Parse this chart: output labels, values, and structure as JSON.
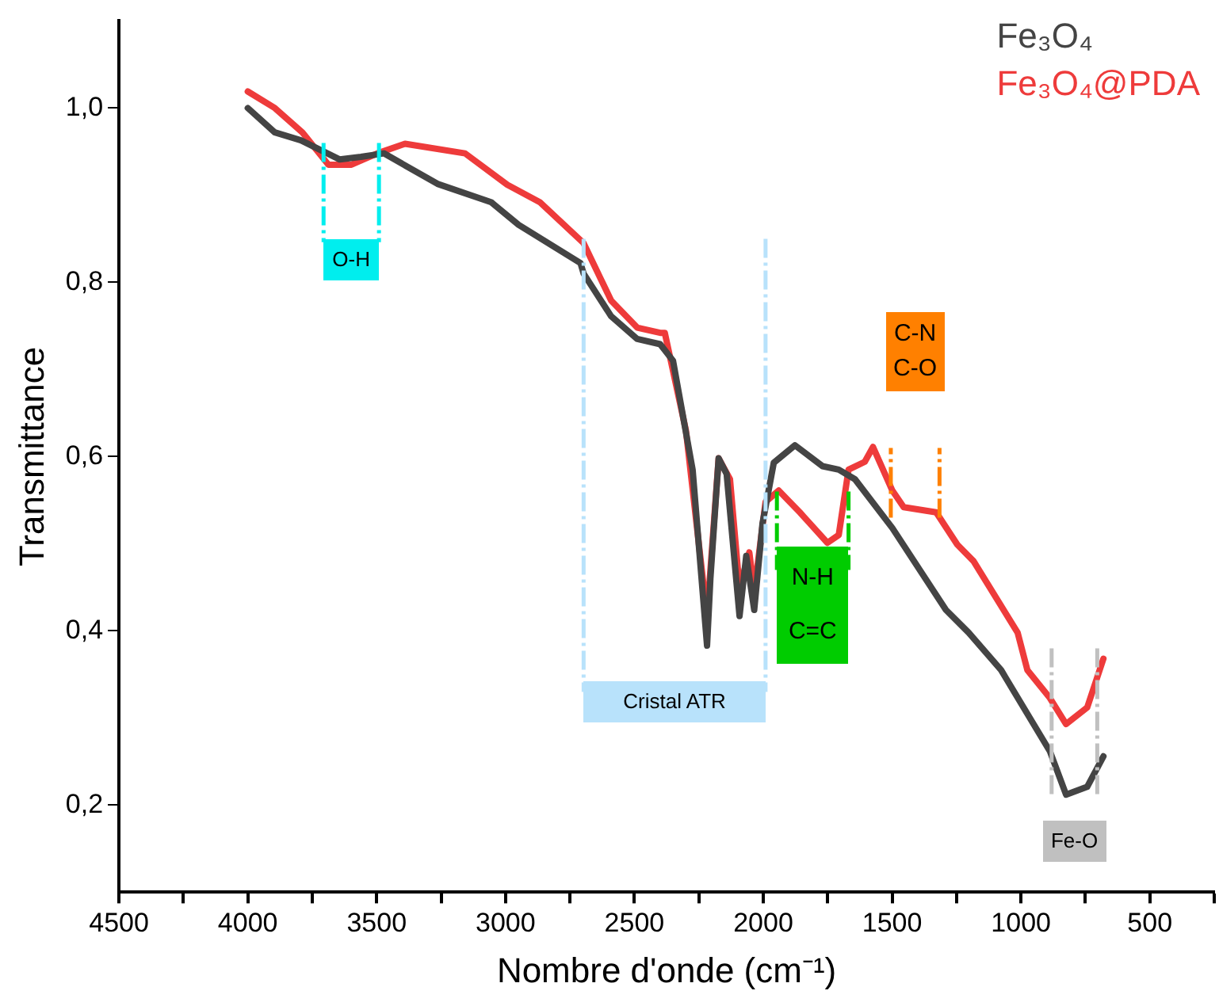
{
  "chart_data": {
    "type": "line",
    "xlabel": "Nombre d'onde (cm⁻¹)",
    "ylabel": "Transmittance",
    "xlim": [
      4500,
      250
    ],
    "ylim": [
      0.1,
      1.1
    ],
    "xticks": [
      4500,
      {
        "value": 4250,
        "label": null
      },
      4000,
      {
        "value": 3750,
        "label": null
      },
      3500,
      {
        "value": 3250,
        "label": null
      },
      3000,
      {
        "value": 2750,
        "label": null
      },
      2500,
      {
        "value": 2250,
        "label": null
      },
      2000,
      {
        "value": 1750,
        "label": null
      },
      1500,
      {
        "value": 1250,
        "label": null
      },
      1000,
      {
        "value": 750,
        "label": null
      },
      500,
      {
        "value": 250,
        "label": null
      }
    ],
    "yticks": [
      {
        "value": 0.2,
        "label": "0,2"
      },
      {
        "value": 0.4,
        "label": "0,4"
      },
      {
        "value": 0.6,
        "label": "0,6"
      },
      {
        "value": 0.8,
        "label": "0,8"
      },
      {
        "value": 1.0,
        "label": "1,0"
      }
    ],
    "grid": false,
    "legend": "top right",
    "marker": "none",
    "line_style": "solid",
    "series": [
      {
        "name": "Fe₃O₄",
        "color": "#444444",
        "x": [
          4000,
          3895,
          3794,
          3643,
          3561,
          3472,
          3264,
          3056,
          2949,
          2709,
          2697,
          2590,
          2489,
          2400,
          2350,
          2274,
          2218,
          2205,
          2173,
          2142,
          2092,
          2066,
          2035,
          2003,
          1959,
          1877,
          1770,
          1707,
          1644,
          1499,
          1291,
          1203,
          1077,
          888,
          825,
          743,
          680
        ],
        "values": [
          1.0,
          0.972,
          0.963,
          0.941,
          0.944,
          0.948,
          0.913,
          0.892,
          0.866,
          0.822,
          0.81,
          0.761,
          0.735,
          0.729,
          0.71,
          0.585,
          0.383,
          0.46,
          0.598,
          0.58,
          0.417,
          0.486,
          0.424,
          0.523,
          0.593,
          0.613,
          0.589,
          0.585,
          0.574,
          0.518,
          0.424,
          0.398,
          0.355,
          0.262,
          0.212,
          0.221,
          0.256
        ]
      },
      {
        "name": "Fe₃O₄@PDA",
        "color": "#ee3b3b",
        "x": [
          4000,
          3895,
          3788,
          3687,
          3598,
          3497,
          3390,
          3157,
          2993,
          2867,
          2697,
          2590,
          2489,
          2400,
          2382,
          2300,
          2218,
          2173,
          2129,
          2092,
          2054,
          2035,
          1991,
          1940,
          1858,
          1751,
          1707,
          1669,
          1606,
          1574,
          1499,
          1455,
          1329,
          1247,
          1184,
          1013,
          975,
          888,
          825,
          743,
          680
        ],
        "values": [
          1.019,
          1.0,
          0.972,
          0.935,
          0.935,
          0.948,
          0.959,
          0.948,
          0.912,
          0.892,
          0.845,
          0.779,
          0.748,
          0.742,
          0.742,
          0.63,
          0.417,
          0.598,
          0.574,
          0.449,
          0.49,
          0.445,
          0.548,
          0.561,
          0.536,
          0.501,
          0.51,
          0.585,
          0.594,
          0.611,
          0.561,
          0.542,
          0.536,
          0.499,
          0.48,
          0.398,
          0.355,
          0.323,
          0.293,
          0.312,
          0.368
        ]
      }
    ],
    "ref_lines": [
      {
        "axis": "x",
        "value": 3706,
        "color": "#00eeee",
        "line_style": "dashed",
        "label": "O-H"
      },
      {
        "axis": "x",
        "value": 3491,
        "color": "#00eeee",
        "line_style": "dashed"
      },
      {
        "axis": "x",
        "value": 2697,
        "color": "#b8e2fb",
        "line_style": "dashed",
        "label": "Cristal ATR"
      },
      {
        "axis": "x",
        "value": 1991,
        "color": "#b8e2fb",
        "line_style": "dashed"
      },
      {
        "axis": "x",
        "value": 1947,
        "color": "#00cc00",
        "line_style": "dashed",
        "label": "N-H\nC=C"
      },
      {
        "axis": "x",
        "value": 1669,
        "color": "#00cc00",
        "line_style": "dashed"
      },
      {
        "axis": "x",
        "value": 1505,
        "color": "#ff8000",
        "line_style": "dashed",
        "label": "C-N\nC-O"
      },
      {
        "axis": "x",
        "value": 1316,
        "color": "#ff8000",
        "line_style": "dashed"
      },
      {
        "axis": "x",
        "value": 881,
        "color": "#c0c0c0",
        "line_style": "dashed",
        "label": "Fe-O"
      },
      {
        "axis": "x",
        "value": 704,
        "color": "#c0c0c0",
        "line_style": "dashed"
      }
    ]
  }
}
